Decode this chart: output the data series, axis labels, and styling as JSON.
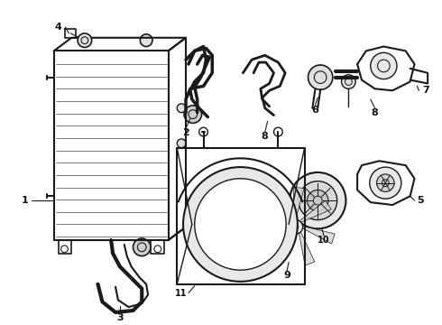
{
  "background_color": "#ffffff",
  "line_color": "#1a1a1a",
  "line_width": 1.0,
  "label_fontsize": 7,
  "figure_width": 4.9,
  "figure_height": 3.6,
  "dpi": 100
}
